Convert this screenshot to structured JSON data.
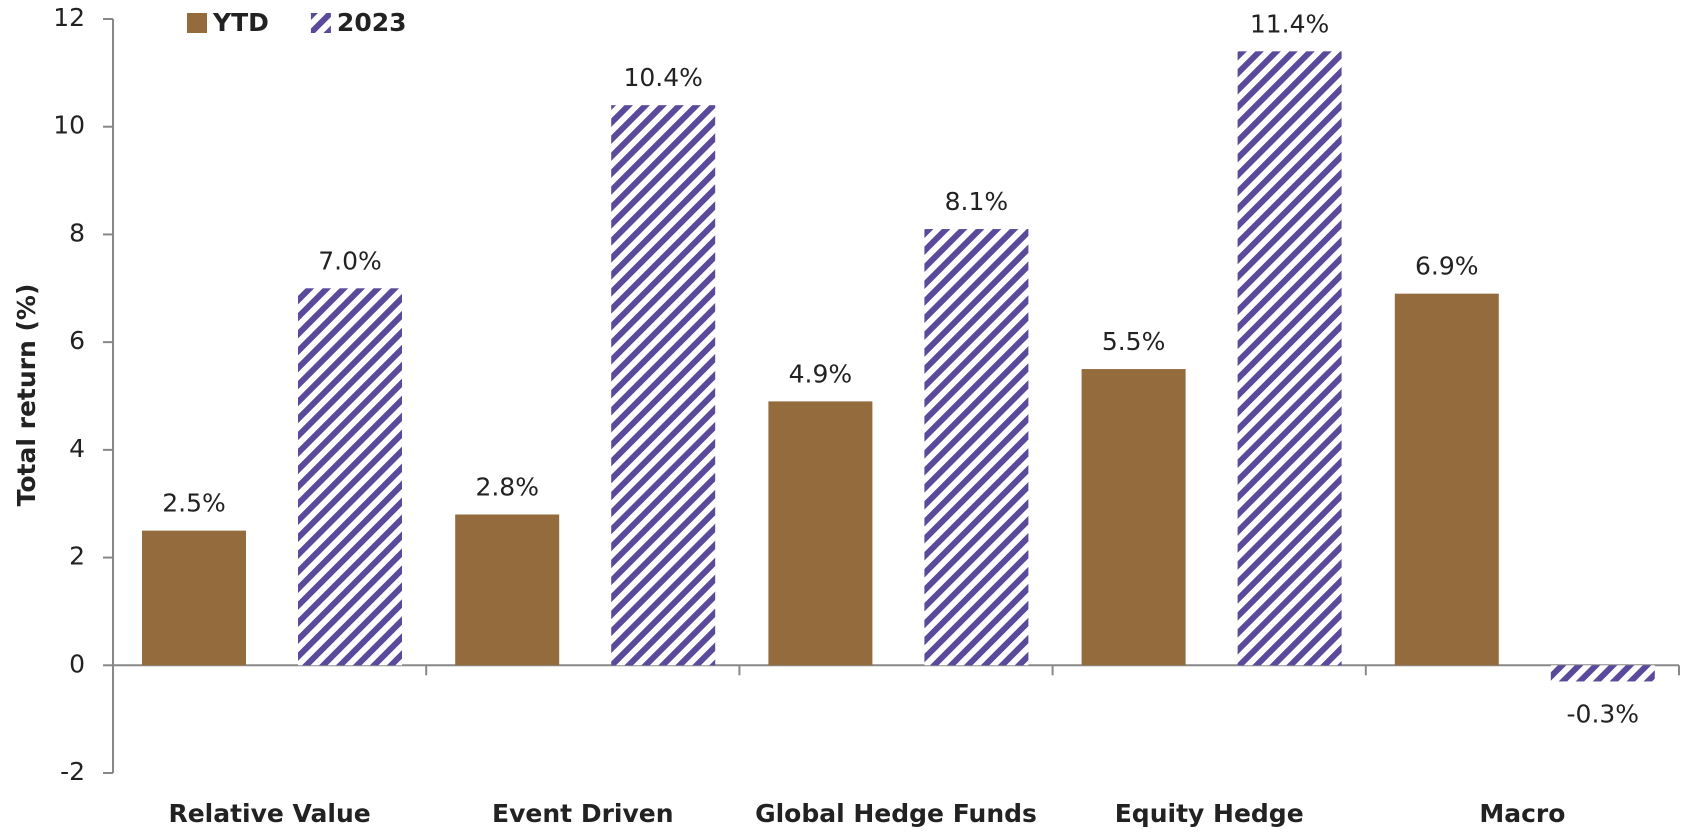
{
  "chart_data": {
    "type": "bar",
    "y_label": "Total return (%)",
    "categories": [
      "Relative Value",
      "Event Driven",
      "Global Hedge Funds",
      "Equity Hedge",
      "Macro"
    ],
    "series": [
      {
        "name": "YTD",
        "color": "#946b3c",
        "fill": "solid",
        "values": [
          2.5,
          2.8,
          4.9,
          5.5,
          6.9
        ],
        "value_labels": [
          "2.5%",
          "2.8%",
          "4.9%",
          "5.5%",
          "6.9%"
        ]
      },
      {
        "name": "2023",
        "color": "#5b4a9c",
        "fill": "hatch",
        "values": [
          7.0,
          10.4,
          8.1,
          11.4,
          -0.3
        ],
        "value_labels": [
          "7.0%",
          "10.4%",
          "8.1%",
          "11.4%",
          "-0.3%"
        ]
      }
    ],
    "ylim": [
      -2,
      12
    ],
    "yticks": [
      -2,
      0,
      2,
      4,
      6,
      8,
      10,
      12
    ],
    "legend": "top-left"
  }
}
